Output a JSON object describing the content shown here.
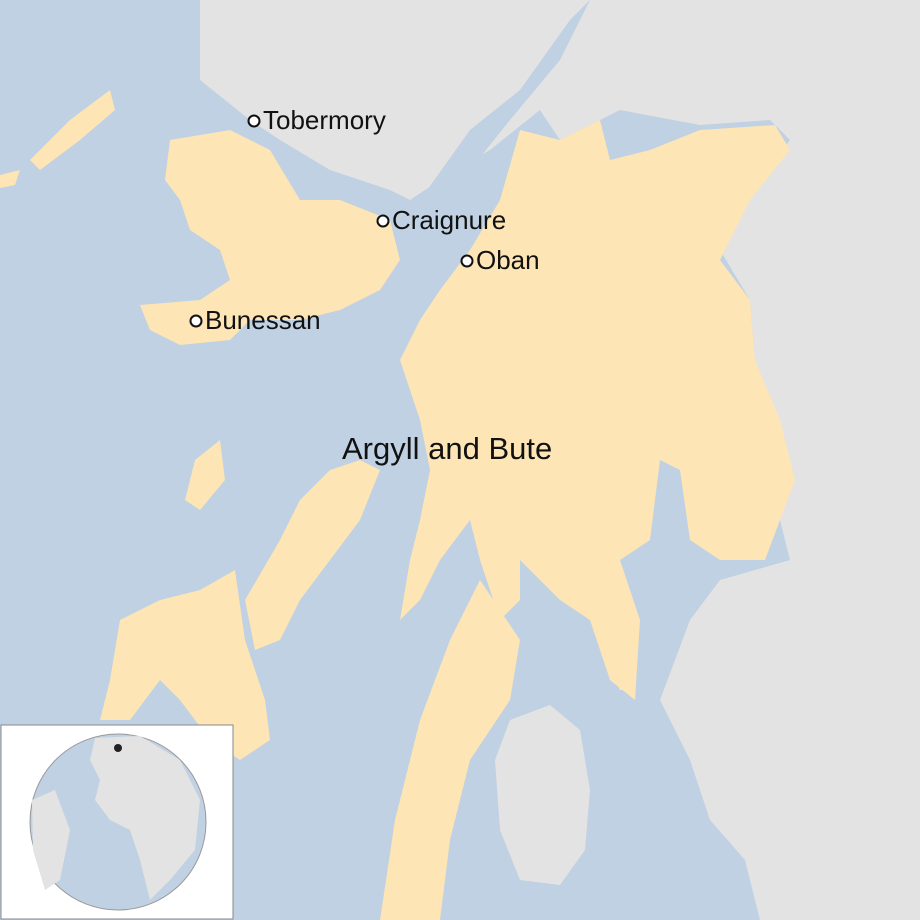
{
  "places": [
    {
      "label": "Tobermory"
    },
    {
      "label": "Craignure"
    },
    {
      "label": "Oban"
    },
    {
      "label": "Bunessan"
    }
  ],
  "region": {
    "label": "Argyll and Bute"
  }
}
